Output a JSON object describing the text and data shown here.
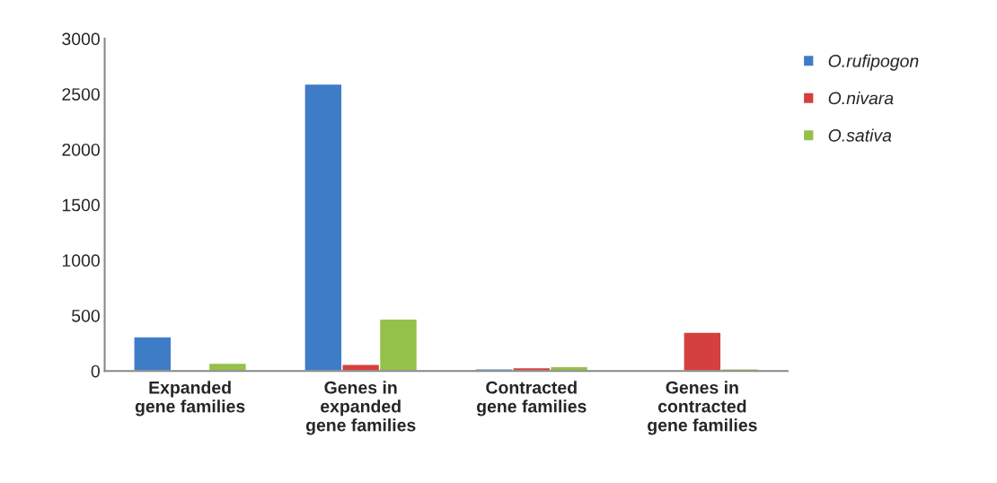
{
  "chart_data": {
    "type": "bar",
    "categories": [
      "Expanded\ngene families",
      "Genes in\nexpanded\ngene families",
      "Contracted\ngene families",
      "Genes in\ncontracted\ngene families"
    ],
    "series": [
      {
        "name": "O.rufipogon",
        "color": "#3f7cc8",
        "values": [
          310,
          2590,
          20,
          null
        ]
      },
      {
        "name": "O.nivara",
        "color": "#d4403d",
        "values": [
          10,
          60,
          30,
          350
        ]
      },
      {
        "name": "O.sativa",
        "color": "#93c14a",
        "values": [
          70,
          470,
          40,
          20
        ]
      }
    ],
    "ylim": [
      0,
      3000
    ],
    "yticks": [
      0,
      500,
      1000,
      1500,
      2000,
      2500,
      3000
    ],
    "grid": false,
    "legend": "top right"
  }
}
